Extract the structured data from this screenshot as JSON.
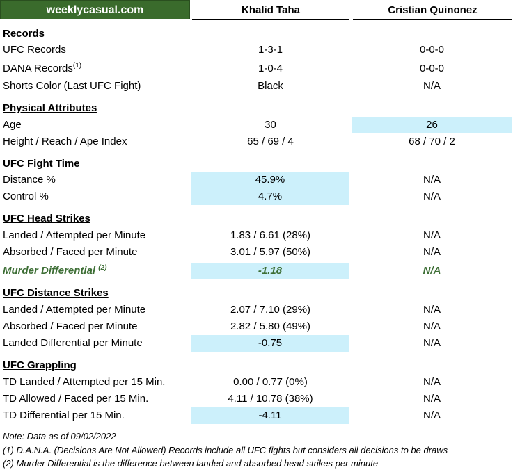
{
  "brand": "weeklycasual.com",
  "fighters": [
    "Khalid Taha",
    "Cristian Quinonez"
  ],
  "rows": [
    {
      "type": "section",
      "label": "Records"
    },
    {
      "type": "stat",
      "label": "UFC Records",
      "v1": "1-3-1",
      "v2": "0-0-0"
    },
    {
      "type": "stat",
      "label": "DANA Records",
      "sup": "(1)",
      "v1": "1-0-4",
      "v2": "0-0-0"
    },
    {
      "type": "stat",
      "label": "Shorts Color (Last UFC Fight)",
      "v1": "Black",
      "v2": "N/A"
    },
    {
      "type": "section",
      "label": "Physical Attributes"
    },
    {
      "type": "stat",
      "label": "Age",
      "v1": "30",
      "v2": "26",
      "hl": 2
    },
    {
      "type": "stat",
      "label": "Height / Reach / Ape Index",
      "v1": "65 / 69 / 4",
      "v2": "68 / 70 / 2"
    },
    {
      "type": "section",
      "label": "UFC Fight Time"
    },
    {
      "type": "stat",
      "label": "Distance %",
      "v1": "45.9%",
      "v2": "N/A",
      "hl": 1
    },
    {
      "type": "stat",
      "label": "Control %",
      "v1": "4.7%",
      "v2": "N/A",
      "hl": 1
    },
    {
      "type": "section",
      "label": "UFC Head Strikes"
    },
    {
      "type": "stat",
      "label": "Landed / Attempted per Minute",
      "v1": "1.83 / 6.61 (28%)",
      "v2": "N/A"
    },
    {
      "type": "stat",
      "label": "Absorbed / Faced per Minute",
      "v1": "3.01 / 5.97 (50%)",
      "v2": "N/A"
    },
    {
      "type": "murder",
      "label": "Murder Differential",
      "sup": "(2)",
      "v1": "-1.18",
      "v2": "N/A",
      "hl": 1
    },
    {
      "type": "section",
      "label": "UFC Distance Strikes"
    },
    {
      "type": "stat",
      "label": "Landed / Attempted per Minute",
      "v1": "2.07 / 7.10 (29%)",
      "v2": "N/A"
    },
    {
      "type": "stat",
      "label": "Absorbed / Faced per Minute",
      "v1": "2.82 / 5.80 (49%)",
      "v2": "N/A"
    },
    {
      "type": "stat",
      "label": "Landed Differential per Minute",
      "v1": "-0.75",
      "v2": "N/A",
      "hl": 1
    },
    {
      "type": "section",
      "label": "UFC Grappling"
    },
    {
      "type": "stat",
      "label": "TD Landed / Attempted per 15 Min.",
      "v1": "0.00 / 0.77 (0%)",
      "v2": "N/A"
    },
    {
      "type": "stat",
      "label": "TD Allowed / Faced per 15 Min.",
      "v1": "4.11 / 10.78 (38%)",
      "v2": "N/A"
    },
    {
      "type": "stat",
      "label": "TD Differential per 15 Min.",
      "v1": "-4.11",
      "v2": "N/A",
      "hl": 1
    }
  ],
  "notes": [
    "Note: Data as of 09/02/2022",
    "(1) D.A.N.A. (Decisions Are Not Allowed) Records include all UFC fights but considers all decisions to be draws",
    "(2) Murder Differential is the difference between landed and absorbed head strikes per minute"
  ]
}
